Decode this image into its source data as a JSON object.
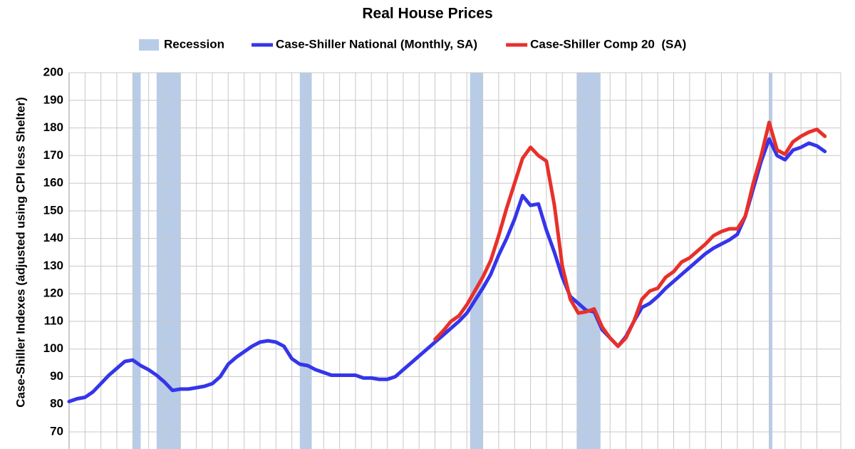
{
  "chart_data": {
    "type": "line",
    "title": "Real House Prices",
    "y_label": "Case-Shiller Indexes (adjusted using CPI less Shelter)",
    "categories": [
      null,
      null,
      null,
      null,
      null,
      null,
      null,
      null,
      null,
      null,
      null,
      null,
      null,
      null,
      null,
      null,
      null,
      null,
      null,
      null,
      null,
      null,
      null,
      null,
      null,
      null,
      null,
      null,
      null,
      null,
      null,
      null,
      null,
      null,
      null,
      null,
      null,
      null,
      null,
      null,
      null,
      null,
      null,
      null,
      null,
      null,
      null,
      null,
      null,
      null,
      null,
      null,
      null,
      null,
      null,
      null,
      null,
      null,
      null,
      null,
      null,
      null,
      null,
      null,
      null,
      null,
      null,
      null,
      null,
      null,
      null,
      null,
      null,
      null,
      null,
      null,
      null,
      null,
      null,
      null,
      null,
      null,
      null,
      null,
      null,
      null,
      null,
      null,
      null,
      null,
      null,
      null,
      null,
      null,
      null,
      null
    ],
    "recession": {
      "name": "Recession",
      "color": "#b8cce8",
      "spans": [
        [
          8,
          9
        ],
        [
          11,
          14
        ],
        [
          29,
          30.5
        ],
        [
          50.4,
          52
        ],
        [
          63.8,
          66.8
        ],
        [
          88,
          88.4
        ]
      ]
    },
    "series": [
      {
        "name": "Case-Shiller National (Monthly, SA)",
        "color": "#3535ea",
        "values": [
          81,
          82,
          82.5,
          84.5,
          87.5,
          90.5,
          93,
          95.5,
          96,
          94,
          92.5,
          90.5,
          88,
          85,
          85.5,
          85.5,
          86,
          86.5,
          87.5,
          90,
          94.5,
          97,
          99,
          101,
          102.5,
          103,
          102.5,
          101,
          96.5,
          94.5,
          94,
          92.5,
          91.5,
          90.5,
          90.5,
          90.5,
          90.5,
          89.5,
          89.5,
          89,
          89,
          90,
          92.5,
          95,
          97.5,
          100,
          102.5,
          105,
          107.5,
          110,
          113,
          117.5,
          122,
          127,
          134,
          140,
          147,
          155.5,
          152,
          152.5,
          143,
          135,
          126,
          119,
          116.5,
          114,
          113.5,
          107,
          104,
          101,
          104.5,
          110,
          115,
          116.5,
          119,
          122,
          124.5,
          127,
          129.5,
          132,
          134.5,
          136.5,
          138,
          139.5,
          141.5,
          148,
          158,
          168,
          176,
          170,
          168.5,
          172,
          173,
          174.5,
          173.5,
          171.5
        ]
      },
      {
        "name": "Case-Shiller Comp 20  (SA)",
        "color": "#e8302a",
        "values": [
          null,
          null,
          null,
          null,
          null,
          null,
          null,
          null,
          null,
          null,
          null,
          null,
          null,
          null,
          null,
          null,
          null,
          null,
          null,
          null,
          null,
          null,
          null,
          null,
          null,
          null,
          null,
          null,
          null,
          null,
          null,
          null,
          null,
          null,
          null,
          null,
          null,
          null,
          null,
          null,
          null,
          null,
          null,
          null,
          null,
          null,
          103.5,
          106.5,
          110,
          112,
          116,
          121,
          126,
          132,
          141,
          151,
          160,
          169,
          173,
          170,
          168,
          152,
          130,
          118,
          113,
          113.5,
          114.5,
          108,
          104,
          101,
          104,
          110,
          118,
          121,
          122,
          126,
          128,
          131.5,
          133,
          135.5,
          138,
          141,
          142.5,
          143.5,
          143.5,
          148,
          160,
          170,
          182,
          172,
          170.5,
          175,
          177,
          178.5,
          179.5,
          177
        ]
      }
    ],
    "ylim": [
      70,
      200
    ],
    "yticks": [
      70,
      80,
      90,
      100,
      110,
      120,
      130,
      140,
      150,
      160,
      170,
      180,
      190,
      200
    ],
    "grid": true
  }
}
